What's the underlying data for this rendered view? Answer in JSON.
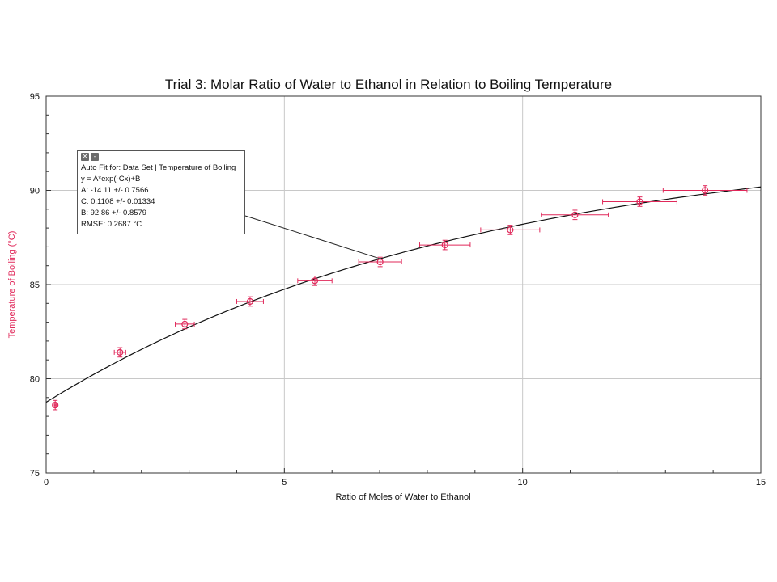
{
  "chart_data": {
    "type": "scatter",
    "title": "Trial 3: Molar Ratio of Water to Ethanol in Relation to Boiling Temperature",
    "xlabel": "Ratio of Moles of Water to Ethanol",
    "ylabel": "Temperature of Boiling (°C)",
    "xlim": [
      0,
      15
    ],
    "ylim": [
      75,
      95
    ],
    "xticks": [
      0,
      5,
      10,
      15
    ],
    "yticks": [
      75,
      80,
      85,
      90,
      95
    ],
    "xtick_labels": [
      "0",
      "5",
      "10",
      "15"
    ],
    "ytick_labels": [
      "75",
      "80",
      "85",
      "90",
      "95"
    ],
    "grid": true,
    "series": [
      {
        "color": "#e0285a",
        "marker": "open-circle",
        "x": [
          0.19,
          1.55,
          2.91,
          4.28,
          5.64,
          7.01,
          8.37,
          9.74,
          11.1,
          12.46,
          13.83
        ],
        "y": [
          78.6,
          81.4,
          82.9,
          84.1,
          85.2,
          86.2,
          87.1,
          87.9,
          88.7,
          89.4,
          90.0
        ],
        "x_err": [
          0.02,
          0.12,
          0.2,
          0.28,
          0.36,
          0.45,
          0.53,
          0.62,
          0.7,
          0.78,
          0.88
        ],
        "y_err": [
          0.25,
          0.25,
          0.25,
          0.25,
          0.25,
          0.25,
          0.25,
          0.25,
          0.25,
          0.25,
          0.25
        ]
      }
    ],
    "fit": {
      "model": "y = A*exp(-Cx)+B",
      "A": -14.11,
      "C": 0.1108,
      "B": 92.86,
      "color": "#111111"
    }
  },
  "fit_box": {
    "header": "Auto Fit for: Data Set | Temperature of Boiling",
    "equation": "y = A*exp(-Cx)+B",
    "a_line": "A: -14.11 +/- 0.7566",
    "c_line": "C: 0.1108 +/- 0.01334",
    "b_line": "B: 92.86 +/- 0.8579",
    "rmse_line": "RMSE: 0.2687 °C",
    "close_glyph": "✕",
    "minimize_glyph": "-"
  }
}
